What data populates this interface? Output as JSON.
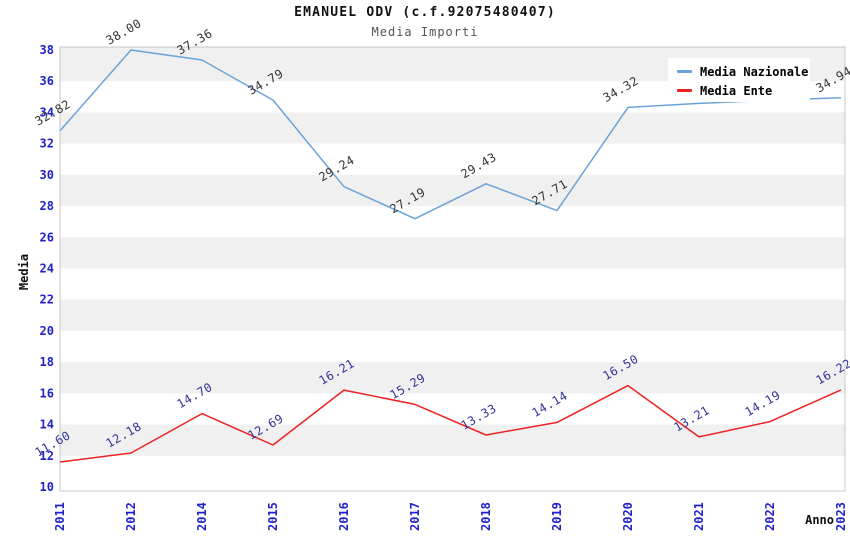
{
  "title": "EMANUEL ODV (c.f.92075480407)",
  "subtitle": "Media Importi",
  "legend": {
    "items": [
      {
        "label": "Media Nazionale",
        "color": "#6ba3d8"
      },
      {
        "label": "Media Ente",
        "color": "#ee2222"
      }
    ]
  },
  "chart_data": {
    "type": "line",
    "title": "EMANUEL ODV (c.f.92075480407)",
    "subtitle": "Media Importi",
    "xlabel": "Anno",
    "ylabel": "Media",
    "x_categories": [
      "2011",
      "2012",
      "2014",
      "2015",
      "2016",
      "2017",
      "2018",
      "2019",
      "2020",
      "2021",
      "2022",
      "2023"
    ],
    "ylim": [
      10,
      38
    ],
    "y_tick_step": 2,
    "grid": "alternating-horizontal-bands",
    "legend_position": "top-right",
    "series": [
      {
        "name": "Media Nazionale",
        "color": "#6ba3d8",
        "label_color": "#333333",
        "values": [
          32.82,
          38.0,
          37.36,
          34.79,
          29.24,
          27.19,
          29.43,
          27.71,
          34.32,
          34.58,
          34.78,
          34.94
        ],
        "point_labels": [
          "32.82",
          "38.00",
          "37.36",
          "34.79",
          "29.24",
          "27.19",
          "29.43",
          "27.71",
          "34.32",
          "",
          "",
          "34.94"
        ]
      },
      {
        "name": "Media Ente",
        "color": "#ee2222",
        "label_color": "#333399",
        "values": [
          11.6,
          12.18,
          14.7,
          12.69,
          16.21,
          15.29,
          13.33,
          14.14,
          16.5,
          13.21,
          14.19,
          16.22
        ],
        "point_labels": [
          "11.60",
          "12.18",
          "14.70",
          "12.69",
          "16.21",
          "15.29",
          "13.33",
          "14.14",
          "16.50",
          "13.21",
          "14.19",
          "16.22"
        ]
      }
    ]
  },
  "colors": {
    "band": "#f0f0f0",
    "plot_border": "#c9c9c9",
    "tick_label": "#2222cc",
    "axis_label": "#111111"
  }
}
